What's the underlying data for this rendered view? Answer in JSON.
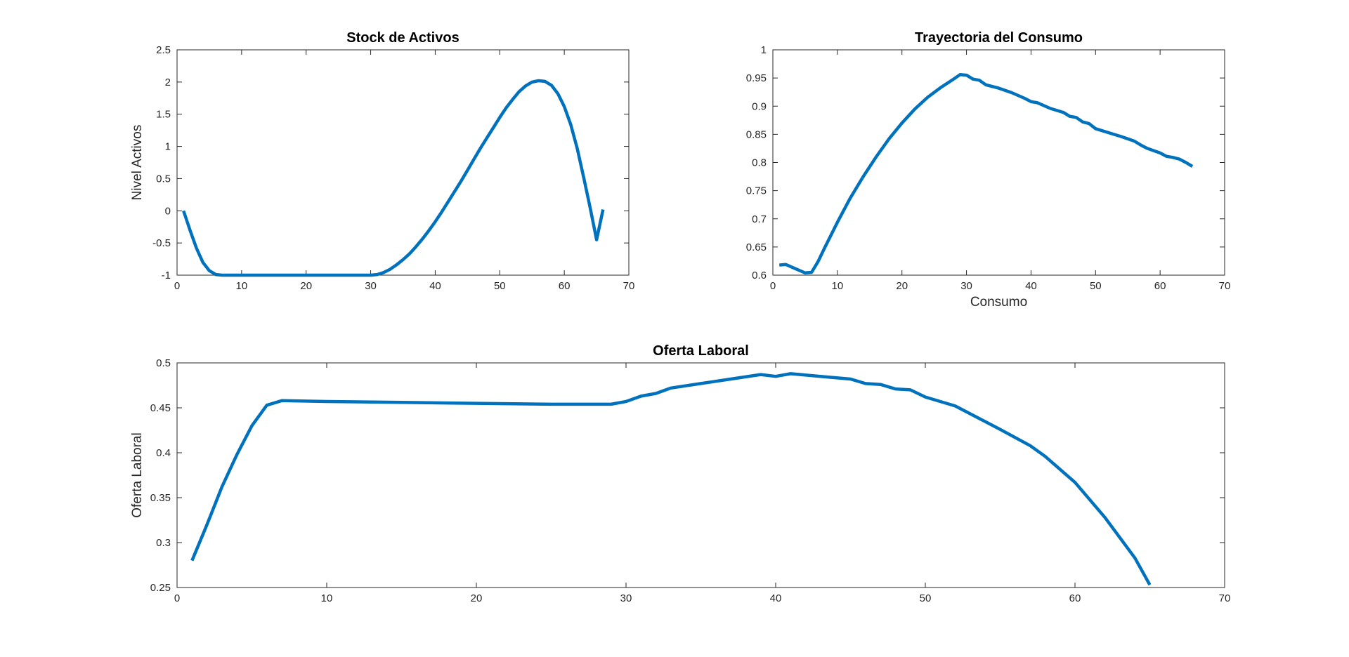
{
  "chart_data": [
    {
      "type": "line",
      "title": "Stock de Activos",
      "xlabel": "",
      "ylabel": "Nivel Activos",
      "xlim": [
        0,
        70
      ],
      "ylim": [
        -1,
        2.5
      ],
      "xticks": [
        0,
        10,
        20,
        30,
        40,
        50,
        60,
        70
      ],
      "yticks": [
        -1,
        -0.5,
        0,
        0.5,
        1,
        1.5,
        2,
        2.5
      ],
      "grid": false,
      "color": "#0072BD",
      "series": [
        {
          "x": [
            1,
            2,
            3,
            4,
            5,
            6,
            7,
            8,
            10,
            12,
            15,
            20,
            25,
            29,
            30,
            31,
            32,
            33,
            34,
            35,
            36,
            37,
            38,
            39,
            40,
            41,
            42,
            43,
            44,
            45,
            46,
            47,
            48,
            49,
            50,
            51,
            52,
            53,
            54,
            55,
            56,
            57,
            58,
            59,
            60,
            61,
            62,
            63,
            64,
            65,
            66
          ],
          "values": [
            0,
            -0.3,
            -0.58,
            -0.8,
            -0.93,
            -0.99,
            -1,
            -1,
            -1,
            -1,
            -1,
            -1,
            -1,
            -1,
            -1,
            -0.99,
            -0.96,
            -0.91,
            -0.84,
            -0.76,
            -0.67,
            -0.56,
            -0.44,
            -0.31,
            -0.17,
            -0.02,
            0.14,
            0.3,
            0.46,
            0.63,
            0.8,
            0.97,
            1.13,
            1.29,
            1.45,
            1.6,
            1.73,
            1.85,
            1.94,
            2.0,
            2.02,
            2.01,
            1.95,
            1.82,
            1.62,
            1.34,
            0.97,
            0.52,
            0.05,
            -0.45,
            0.02
          ]
        }
      ]
    },
    {
      "type": "line",
      "title": "Trayectoria del Consumo",
      "xlabel": "Consumo",
      "ylabel": "",
      "xlim": [
        0,
        70
      ],
      "ylim": [
        0.6,
        1
      ],
      "xticks": [
        0,
        10,
        20,
        30,
        40,
        50,
        60,
        70
      ],
      "yticks": [
        0.6,
        0.65,
        0.7,
        0.75,
        0.8,
        0.85,
        0.9,
        0.95,
        1
      ],
      "grid": false,
      "color": "#0072BD",
      "series": [
        {
          "x": [
            1,
            2,
            3,
            4,
            5,
            6,
            7,
            8,
            10,
            12,
            14,
            16,
            18,
            20,
            22,
            24,
            26,
            28,
            29,
            30,
            31,
            32,
            33,
            35,
            37,
            39,
            40,
            41,
            43,
            45,
            46,
            47,
            48,
            49,
            50,
            52,
            54,
            56,
            57,
            58,
            60,
            61,
            62,
            63,
            64,
            65
          ],
          "values": [
            0.618,
            0.619,
            0.614,
            0.609,
            0.604,
            0.605,
            0.624,
            0.648,
            0.694,
            0.737,
            0.775,
            0.81,
            0.842,
            0.87,
            0.895,
            0.916,
            0.933,
            0.948,
            0.956,
            0.955,
            0.948,
            0.946,
            0.938,
            0.932,
            0.924,
            0.914,
            0.908,
            0.906,
            0.896,
            0.889,
            0.882,
            0.88,
            0.872,
            0.869,
            0.86,
            0.853,
            0.846,
            0.838,
            0.831,
            0.825,
            0.817,
            0.811,
            0.809,
            0.806,
            0.8,
            0.793
          ]
        }
      ]
    },
    {
      "type": "line",
      "title": "Oferta Laboral",
      "xlabel": "",
      "ylabel": "Oferta Laboral",
      "xlim": [
        0,
        70
      ],
      "ylim": [
        0.25,
        0.5
      ],
      "xticks": [
        0,
        10,
        20,
        30,
        40,
        50,
        60,
        70
      ],
      "yticks": [
        0.25,
        0.3,
        0.35,
        0.4,
        0.45,
        0.5
      ],
      "grid": false,
      "color": "#0072BD",
      "series": [
        {
          "x": [
            1,
            2,
            3,
            4,
            5,
            6,
            7,
            10,
            15,
            20,
            25,
            29,
            30,
            31,
            32,
            33,
            35,
            37,
            39,
            40,
            41,
            43,
            45,
            46,
            47,
            48,
            49,
            50,
            52,
            55,
            57,
            58,
            60,
            62,
            64,
            65
          ],
          "values": [
            0.28,
            0.32,
            0.362,
            0.398,
            0.43,
            0.453,
            0.458,
            0.457,
            0.456,
            0.455,
            0.454,
            0.454,
            0.457,
            0.463,
            0.466,
            0.472,
            0.477,
            0.482,
            0.487,
            0.485,
            0.488,
            0.485,
            0.482,
            0.477,
            0.476,
            0.471,
            0.47,
            0.462,
            0.452,
            0.426,
            0.408,
            0.396,
            0.367,
            0.328,
            0.283,
            0.253
          ]
        }
      ]
    }
  ]
}
